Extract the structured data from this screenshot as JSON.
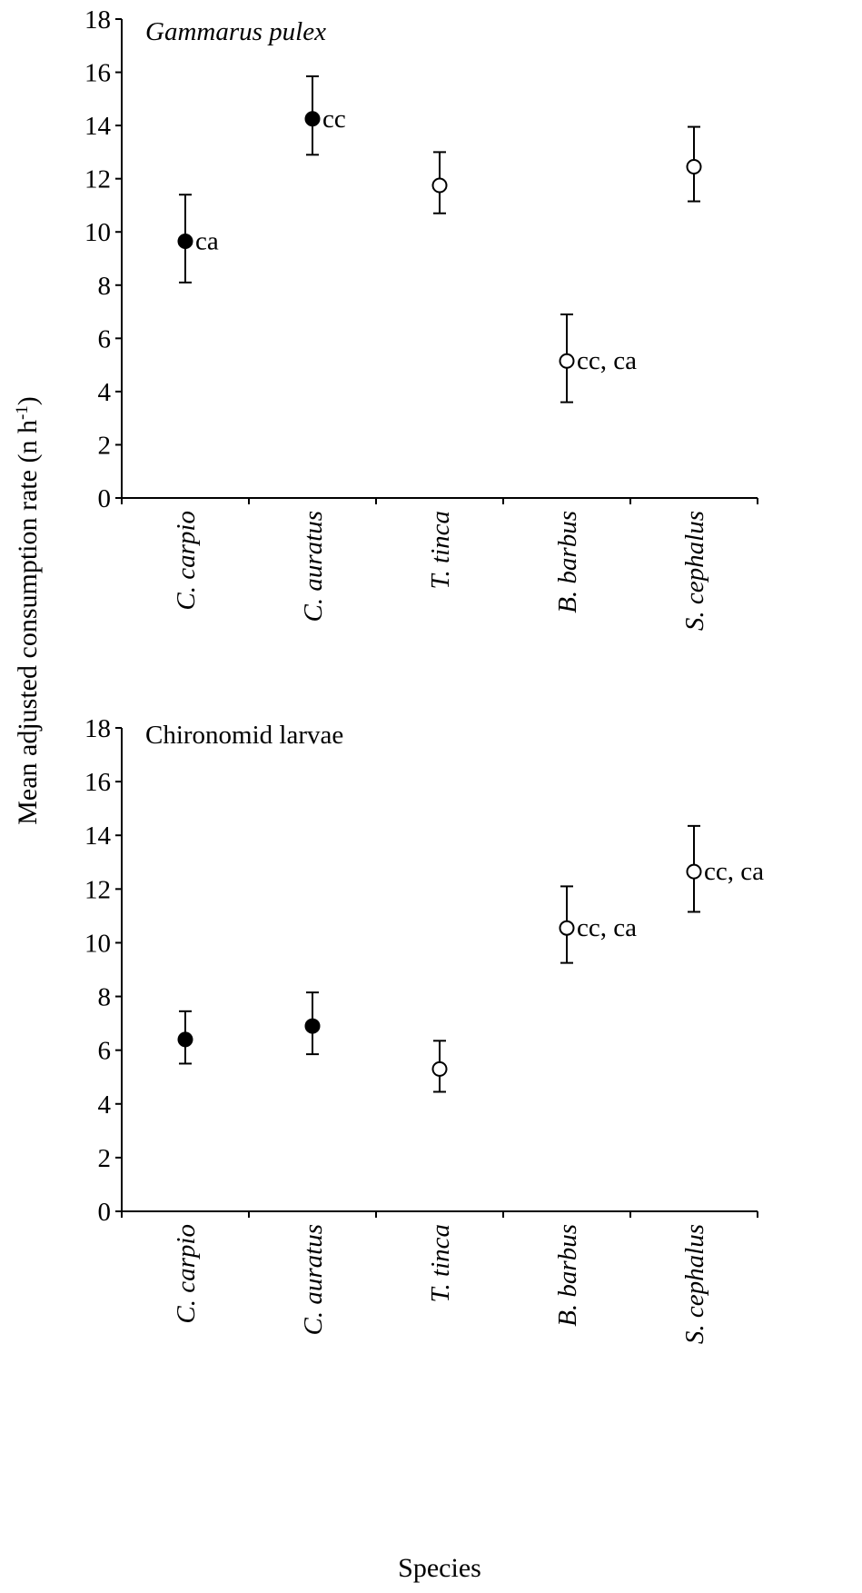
{
  "ylabel_main": "Mean adjusted consumption rate (n h",
  "ylabel_sup": "-1",
  "ylabel_end": ")",
  "xlabel": "Species",
  "chart_data": [
    {
      "type": "scatter",
      "title": "Gammarus pulex",
      "title_italic": true,
      "xlabel": "Species",
      "ylabel": "Mean adjusted consumption rate (n h-1)",
      "ylim": [
        0,
        18
      ],
      "yticks": [
        0,
        2,
        4,
        6,
        8,
        10,
        12,
        14,
        16,
        18
      ],
      "grid": false,
      "categories": [
        "C. carpio",
        "C. auratus",
        "T. tinca",
        "B. barbus",
        "S. cephalus"
      ],
      "values": [
        9.65,
        14.25,
        11.75,
        5.15,
        12.45
      ],
      "error_low": [
        8.1,
        12.9,
        10.7,
        3.6,
        11.15
      ],
      "error_high": [
        11.4,
        15.85,
        13.0,
        6.9,
        13.95
      ],
      "filled": [
        true,
        true,
        false,
        false,
        false
      ],
      "annotations": [
        "ca",
        "cc",
        "",
        "cc, ca",
        ""
      ]
    },
    {
      "type": "scatter",
      "title": "Chironomid larvae",
      "title_italic": false,
      "xlabel": "Species",
      "ylabel": "Mean adjusted consumption rate (n h-1)",
      "ylim": [
        0,
        18
      ],
      "yticks": [
        0,
        2,
        4,
        6,
        8,
        10,
        12,
        14,
        16,
        18
      ],
      "grid": false,
      "categories": [
        "C. carpio",
        "C. auratus",
        "T. tinca",
        "B. barbus",
        "S. cephalus"
      ],
      "values": [
        6.4,
        6.9,
        5.3,
        10.55,
        12.65
      ],
      "error_low": [
        5.5,
        5.85,
        4.45,
        9.25,
        11.15
      ],
      "error_high": [
        7.45,
        8.15,
        6.35,
        12.1,
        14.35
      ],
      "filled": [
        true,
        true,
        false,
        false,
        false
      ],
      "annotations": [
        "",
        "",
        "",
        "cc, ca",
        "cc, ca"
      ]
    }
  ]
}
